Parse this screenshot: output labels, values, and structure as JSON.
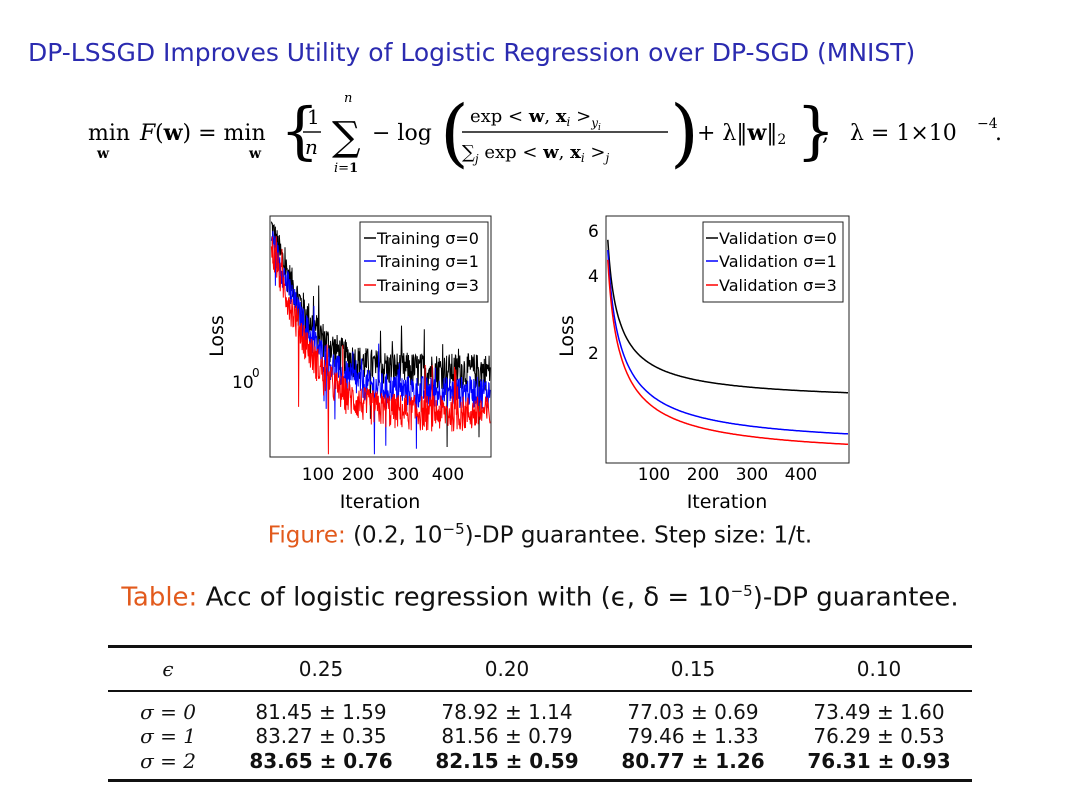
{
  "title": "DP-LSSGD Improves Utility of Logistic Regression over DP-SGD (MNIST)",
  "formula": {
    "lambda_value": "λ = 1×10",
    "lambda_exp": "−4"
  },
  "chart_data": [
    {
      "type": "line",
      "panel": "training",
      "xlabel": "Iteration",
      "ylabel": "Loss",
      "xticks": [
        "100",
        "200",
        "300",
        "400"
      ],
      "yticks": [
        "10"
      ],
      "ytick_exp": "0",
      "xlim": [
        0,
        500
      ],
      "y_scale": "log",
      "legend": [
        {
          "name": "Training σ=0",
          "color": "#000000"
        },
        {
          "name": "Training σ=1",
          "color": "#0000ff"
        },
        {
          "name": "Training σ=3",
          "color": "#ff0000"
        }
      ],
      "series": [
        {
          "name": "Training σ=0",
          "start": 5.5,
          "end": 1.3,
          "noise": 0.18
        },
        {
          "name": "Training σ=1",
          "start": 5.0,
          "end": 1.05,
          "noise": 0.16
        },
        {
          "name": "Training σ=3",
          "start": 4.5,
          "end": 0.85,
          "noise": 0.18
        }
      ]
    },
    {
      "type": "line",
      "panel": "validation",
      "xlabel": "Iteration",
      "ylabel": "Loss",
      "xticks": [
        "100",
        "200",
        "300",
        "400"
      ],
      "yticks": [
        "6",
        "4",
        "2"
      ],
      "xlim": [
        0,
        500
      ],
      "ylim": [
        0.8,
        7
      ],
      "y_scale": "log",
      "legend": [
        {
          "name": "Validation σ=0",
          "color": "#000000"
        },
        {
          "name": "Validation σ=1",
          "color": "#0000ff"
        },
        {
          "name": "Validation σ=3",
          "color": "#ff0000"
        }
      ],
      "series": [
        {
          "name": "Validation σ=0",
          "start": 6.5,
          "end": 1.35
        },
        {
          "name": "Validation σ=1",
          "start": 6.0,
          "end": 0.9
        },
        {
          "name": "Validation σ=3",
          "start": 5.5,
          "end": 0.82
        }
      ]
    }
  ],
  "figure_caption": {
    "label": "Figure:",
    "text_a": "(0.2, 10",
    "exp": "−5",
    "text_b": ")-DP guarantee. Step size: 1/t."
  },
  "table_caption": {
    "label": "Table:",
    "text_a": "Acc of logistic regression with (ϵ, δ = 10",
    "exp": "−5",
    "text_b": ")-DP guarantee."
  },
  "table": {
    "headers": [
      "ϵ",
      "0.25",
      "0.20",
      "0.15",
      "0.10"
    ],
    "rows": [
      {
        "label": "σ = 0",
        "cells": [
          "81.45 ± 1.59",
          "78.92 ± 1.14",
          "77.03 ± 0.69",
          "73.49 ± 1.60"
        ],
        "bold": false
      },
      {
        "label": "σ = 1",
        "cells": [
          "83.27 ± 0.35",
          "81.56 ± 0.79",
          "79.46 ± 1.33",
          "76.29 ± 0.53"
        ],
        "bold": false
      },
      {
        "label": "σ = 2",
        "cells": [
          "83.65 ± 0.76",
          "82.15 ± 0.59",
          "80.77 ± 1.26",
          "76.31 ± 0.93"
        ],
        "bold": true
      }
    ]
  }
}
